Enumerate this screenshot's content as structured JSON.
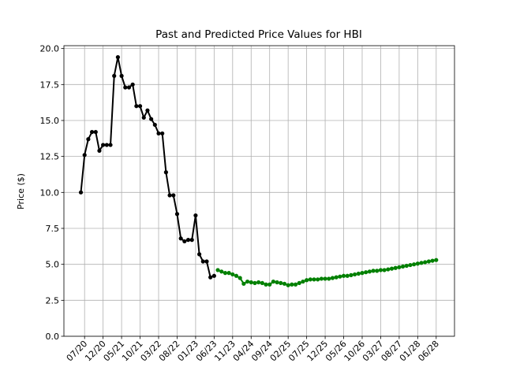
{
  "chart_data": {
    "type": "line",
    "title": "Past and Predicted Price Values for HBI",
    "ylabel": "Price ($)",
    "x": [
      "06/20",
      "07/20",
      "08/20",
      "09/20",
      "10/20",
      "11/20",
      "12/20",
      "01/21",
      "02/21",
      "03/21",
      "04/21",
      "05/21",
      "06/21",
      "07/21",
      "08/21",
      "09/21",
      "10/21",
      "11/21",
      "12/21",
      "01/22",
      "02/22",
      "03/22",
      "04/22",
      "05/22",
      "06/22",
      "07/22",
      "08/22",
      "09/22",
      "10/22",
      "11/22",
      "12/22",
      "01/23",
      "02/23",
      "03/23",
      "04/23",
      "05/23",
      "06/23",
      "07/23",
      "08/23",
      "09/23",
      "10/23",
      "11/23",
      "12/23",
      "01/24",
      "02/24",
      "03/24",
      "04/24",
      "05/24",
      "06/24",
      "07/24",
      "08/24",
      "09/24",
      "10/24",
      "11/24",
      "12/24",
      "01/25",
      "02/25",
      "03/25",
      "04/25",
      "05/25",
      "06/25",
      "07/25",
      "08/25",
      "09/25",
      "10/25",
      "11/25",
      "12/25",
      "01/26",
      "02/26",
      "03/26",
      "04/26",
      "05/26",
      "06/26",
      "07/26",
      "08/26",
      "09/26",
      "10/26",
      "11/26",
      "12/26",
      "01/27",
      "02/27",
      "03/27",
      "04/27",
      "05/27",
      "06/27",
      "07/27",
      "08/27",
      "09/27",
      "10/27",
      "11/27",
      "12/27",
      "01/28",
      "02/28",
      "03/28",
      "04/28",
      "05/28",
      "06/28"
    ],
    "series": [
      {
        "color": "#000000",
        "values": [
          10.0,
          12.6,
          13.7,
          14.2,
          14.2,
          12.9,
          13.3,
          13.3,
          13.3,
          18.1,
          19.4,
          18.1,
          17.3,
          17.3,
          17.5,
          16.0,
          16.0,
          15.2,
          15.7,
          15.1,
          14.7,
          14.1,
          14.1,
          11.4,
          9.8,
          9.8,
          8.5,
          6.8,
          6.6,
          6.7,
          6.7,
          8.4,
          5.7,
          5.2,
          5.2,
          4.1,
          4.2,
          null,
          null,
          null,
          null,
          null,
          null,
          null,
          null,
          null,
          null,
          null,
          null,
          null,
          null,
          null,
          null,
          null,
          null,
          null,
          null,
          null,
          null,
          null,
          null,
          null,
          null,
          null,
          null,
          null,
          null,
          null,
          null,
          null,
          null,
          null,
          null,
          null,
          null,
          null,
          null,
          null,
          null,
          null,
          null,
          null,
          null,
          null,
          null,
          null,
          null,
          null,
          null,
          null,
          null,
          null,
          null,
          null,
          null,
          null,
          null
        ]
      },
      {
        "color": "#008000",
        "values": [
          null,
          null,
          null,
          null,
          null,
          null,
          null,
          null,
          null,
          null,
          null,
          null,
          null,
          null,
          null,
          null,
          null,
          null,
          null,
          null,
          null,
          null,
          null,
          null,
          null,
          null,
          null,
          null,
          null,
          null,
          null,
          null,
          null,
          null,
          null,
          null,
          null,
          4.6,
          4.5,
          4.4,
          4.4,
          4.3,
          4.2,
          4.05,
          3.65,
          3.8,
          3.75,
          3.7,
          3.75,
          3.7,
          3.6,
          3.6,
          3.8,
          3.75,
          3.7,
          3.65,
          3.55,
          3.6,
          3.6,
          3.7,
          3.8,
          3.9,
          3.95,
          3.95,
          3.95,
          4.0,
          4.0,
          4.0,
          4.05,
          4.1,
          4.15,
          4.2,
          4.2,
          4.25,
          4.3,
          4.35,
          4.4,
          4.45,
          4.5,
          4.55,
          4.55,
          4.6,
          4.6,
          4.65,
          4.7,
          4.75,
          4.8,
          4.85,
          4.9,
          4.95,
          5.0,
          5.05,
          5.1,
          5.15,
          5.2,
          5.25,
          5.3
        ]
      }
    ],
    "xticks": [
      "07/20",
      "12/20",
      "05/21",
      "10/21",
      "03/22",
      "08/22",
      "01/23",
      "06/23",
      "11/23",
      "04/24",
      "09/24",
      "02/25",
      "07/25",
      "12/25",
      "05/26",
      "10/26",
      "03/27",
      "08/27",
      "01/28",
      "06/28"
    ],
    "ylim": [
      0,
      20.2
    ],
    "yticks": [
      {
        "value": 0,
        "label": "0.0"
      },
      2.5,
      {
        "value": 5,
        "label": "5.0"
      },
      7.5,
      {
        "value": 10,
        "label": "10.0"
      },
      12.5,
      {
        "value": 15,
        "label": "15.0"
      },
      17.5,
      {
        "value": 20,
        "label": "20.0"
      }
    ],
    "grid": true
  }
}
